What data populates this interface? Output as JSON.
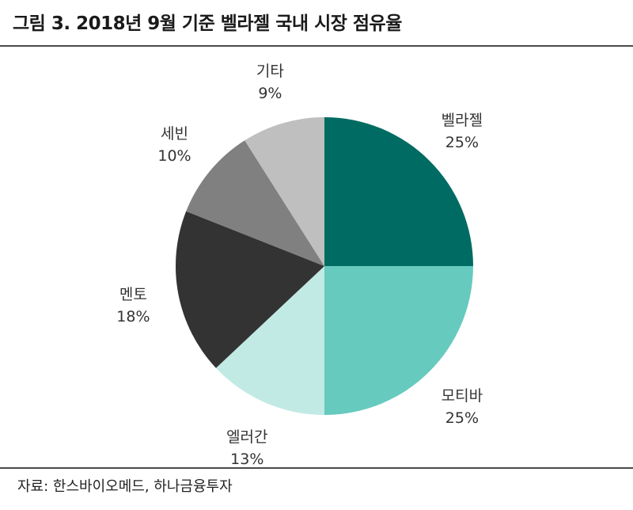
{
  "title": "그림 3. 2018년 9월 기준 벨라젤 국내 시장 점유율",
  "source": "자료: 한스바이오메드, 하나금융투자",
  "chart_data": {
    "type": "pie",
    "slices": [
      {
        "label": "벨라젤",
        "value": 25,
        "display": "25%",
        "color": "#006B62"
      },
      {
        "label": "모티바",
        "value": 25,
        "display": "25%",
        "color": "#66CBBE"
      },
      {
        "label": "엘러간",
        "value": 13,
        "display": "13%",
        "color": "#C2EAE5"
      },
      {
        "label": "멘토",
        "value": 18,
        "display": "18%",
        "color": "#333333"
      },
      {
        "label": "세빈",
        "value": 10,
        "display": "10%",
        "color": "#808080"
      },
      {
        "label": "기타",
        "value": 9,
        "display": "9%",
        "color": "#BFBFBF"
      }
    ]
  }
}
